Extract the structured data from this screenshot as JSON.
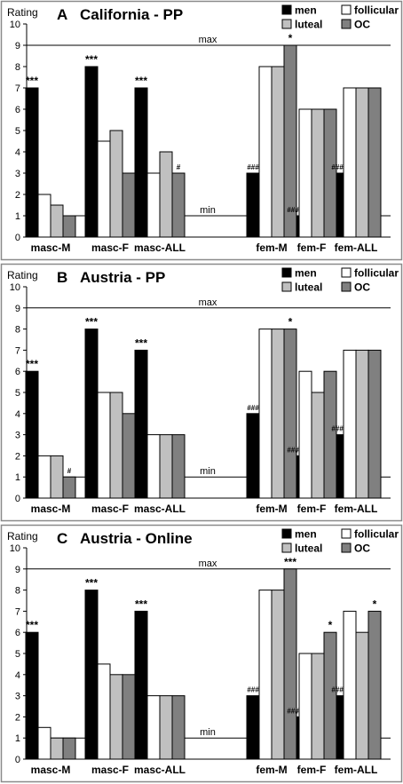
{
  "chart_data": [
    {
      "type": "bar",
      "letter": "A",
      "title": "California - PP",
      "ylabel": "Rating",
      "ylim": [
        0,
        10
      ],
      "yticks": [
        "0",
        "1",
        "2",
        "3",
        "4",
        "5",
        "6",
        "7",
        "8",
        "9",
        "10"
      ],
      "max_label": "max",
      "min_label": "min",
      "reference_lines": [
        9,
        1
      ],
      "categories": [
        "masc-M",
        "masc-F",
        "masc-ALL",
        "",
        "fem-M",
        "fem-F",
        "fem-ALL"
      ],
      "series": [
        {
          "name": "men",
          "color": "#000000",
          "values": [
            7,
            8,
            7,
            null,
            3,
            1,
            3
          ]
        },
        {
          "name": "follicular",
          "color": "#ffffff",
          "values": [
            2,
            4.5,
            3,
            null,
            8,
            6,
            7
          ]
        },
        {
          "name": "luteal",
          "color": "#c0c0c0",
          "values": [
            1.5,
            5,
            4,
            null,
            8,
            6,
            7
          ]
        },
        {
          "name": "OC",
          "color": "#808080",
          "values": [
            1,
            3,
            3,
            null,
            9,
            6,
            7
          ]
        }
      ],
      "annotations": [
        {
          "category": 0,
          "series": 0,
          "text": "***"
        },
        {
          "category": 1,
          "series": 0,
          "text": "***"
        },
        {
          "category": 2,
          "series": 0,
          "text": "***"
        },
        {
          "category": 2,
          "series": 3,
          "text": "#"
        },
        {
          "category": 4,
          "series": 0,
          "text": "###"
        },
        {
          "category": 4,
          "series": 3,
          "text": "*"
        },
        {
          "category": 5,
          "series": 0,
          "text": "###"
        },
        {
          "category": 6,
          "series": 0,
          "text": "###"
        }
      ],
      "legend": [
        "men",
        "follicular",
        "luteal",
        "OC"
      ],
      "legend_position": "top-right",
      "grid": false
    },
    {
      "type": "bar",
      "letter": "B",
      "title": "Austria - PP",
      "ylabel": "Rating",
      "ylim": [
        0,
        10
      ],
      "yticks": [
        "0",
        "1",
        "2",
        "3",
        "4",
        "5",
        "6",
        "7",
        "8",
        "9",
        "10"
      ],
      "max_label": "max",
      "min_label": "min",
      "reference_lines": [
        9,
        1
      ],
      "categories": [
        "masc-M",
        "masc-F",
        "masc-ALL",
        "",
        "fem-M",
        "fem-F",
        "fem-ALL"
      ],
      "series": [
        {
          "name": "men",
          "color": "#000000",
          "values": [
            6,
            8,
            7,
            null,
            4,
            2,
            3
          ]
        },
        {
          "name": "follicular",
          "color": "#ffffff",
          "values": [
            2,
            5,
            3,
            null,
            8,
            6,
            7
          ]
        },
        {
          "name": "luteal",
          "color": "#c0c0c0",
          "values": [
            2,
            5,
            3,
            null,
            8,
            5,
            7
          ]
        },
        {
          "name": "OC",
          "color": "#808080",
          "values": [
            1,
            4,
            3,
            null,
            8,
            6,
            7
          ]
        }
      ],
      "annotations": [
        {
          "category": 0,
          "series": 0,
          "text": "***"
        },
        {
          "category": 0,
          "series": 3,
          "text": "#"
        },
        {
          "category": 1,
          "series": 0,
          "text": "***"
        },
        {
          "category": 2,
          "series": 0,
          "text": "***"
        },
        {
          "category": 4,
          "series": 0,
          "text": "###"
        },
        {
          "category": 4,
          "series": 3,
          "text": "*"
        },
        {
          "category": 5,
          "series": 0,
          "text": "###"
        },
        {
          "category": 6,
          "series": 0,
          "text": "###"
        }
      ],
      "legend": [
        "men",
        "follicular",
        "luteal",
        "OC"
      ],
      "legend_position": "top-right",
      "grid": false
    },
    {
      "type": "bar",
      "letter": "C",
      "title": "Austria - Online",
      "ylabel": "Rating",
      "ylim": [
        0,
        10
      ],
      "yticks": [
        "0",
        "1",
        "2",
        "3",
        "4",
        "5",
        "6",
        "7",
        "8",
        "9",
        "10"
      ],
      "max_label": "max",
      "min_label": "min",
      "reference_lines": [
        9,
        1
      ],
      "categories": [
        "masc-M",
        "masc-F",
        "masc-ALL",
        "",
        "fem-M",
        "fem-F",
        "fem-ALL"
      ],
      "series": [
        {
          "name": "men",
          "color": "#000000",
          "values": [
            6,
            8,
            7,
            null,
            3,
            2,
            3
          ]
        },
        {
          "name": "follicular",
          "color": "#ffffff",
          "values": [
            1.5,
            4.5,
            3,
            null,
            8,
            5,
            7
          ]
        },
        {
          "name": "luteal",
          "color": "#c0c0c0",
          "values": [
            1,
            4,
            3,
            null,
            8,
            5,
            6
          ]
        },
        {
          "name": "OC",
          "color": "#808080",
          "values": [
            1,
            4,
            3,
            null,
            9,
            6,
            7
          ]
        }
      ],
      "annotations": [
        {
          "category": 0,
          "series": 0,
          "text": "***"
        },
        {
          "category": 1,
          "series": 0,
          "text": "***"
        },
        {
          "category": 2,
          "series": 0,
          "text": "***"
        },
        {
          "category": 4,
          "series": 0,
          "text": "###"
        },
        {
          "category": 4,
          "series": 3,
          "text": "***"
        },
        {
          "category": 5,
          "series": 0,
          "text": "###"
        },
        {
          "category": 5,
          "series": 3,
          "text": "*"
        },
        {
          "category": 6,
          "series": 0,
          "text": "###"
        },
        {
          "category": 6,
          "series": 3,
          "text": "*"
        }
      ],
      "legend": [
        "men",
        "follicular",
        "luteal",
        "OC"
      ],
      "legend_position": "top-right",
      "grid": false
    }
  ]
}
